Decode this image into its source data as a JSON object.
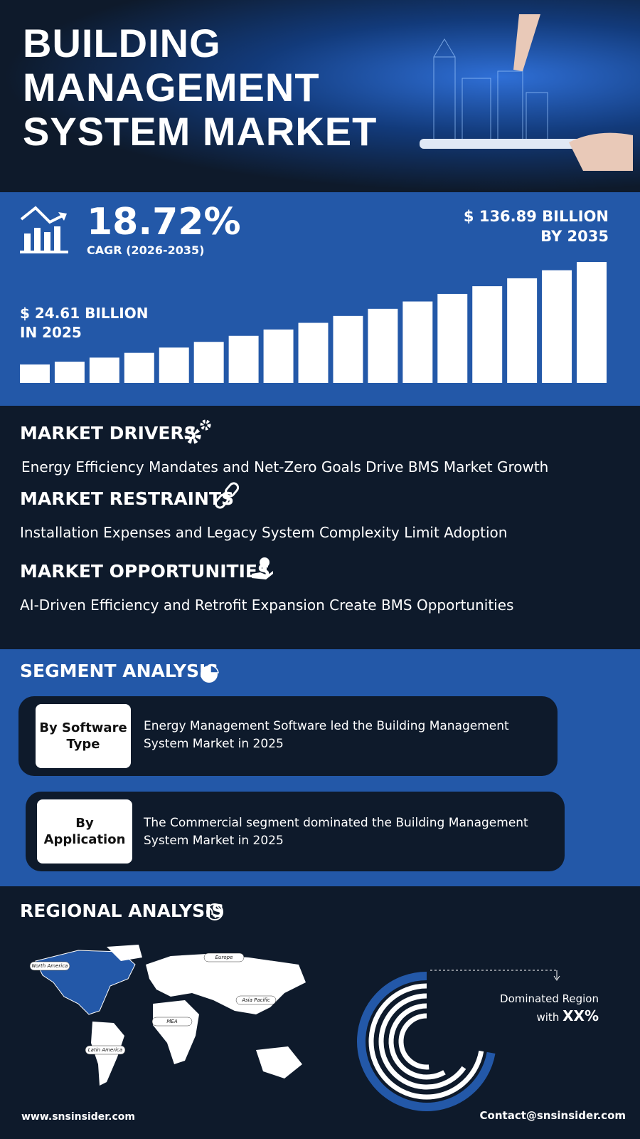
{
  "header": {
    "title": [
      "BUILDING",
      "MANAGEMENT",
      "SYSTEM MARKET"
    ]
  },
  "growth": {
    "cagr": "18.72%",
    "cagr_label": "CAGR (2026-2035)",
    "end_value": [
      "$ 136.89 BILLION",
      "BY 2035"
    ],
    "start_value": [
      "$ 24.61 BILLION",
      "IN 2025"
    ]
  },
  "dynamics": [
    {
      "heading": "MARKET DRIVERS",
      "text": "Energy Efficiency Mandates and Net-Zero Goals Drive BMS Market Growth"
    },
    {
      "heading": "MARKET RESTRAINTS",
      "text": "Installation Expenses and Legacy System Complexity Limit Adoption"
    },
    {
      "heading": "MARKET OPPORTUNITIES",
      "text": "AI-Driven Efficiency and Retrofit Expansion Create BMS Opportunities"
    }
  ],
  "segment": {
    "heading": "SEGMENT ANALYSIS",
    "items": [
      {
        "label": "By Software Type",
        "text": "Energy Management Software led the Building Management System Market in 2025"
      },
      {
        "label": "By Application",
        "text": "The Commercial segment dominated the Building Management System Market in 2025"
      }
    ]
  },
  "regional": {
    "heading": "REGIONAL ANALYSIS",
    "map_labels": [
      "North America",
      "Europe",
      "Asia Pacific",
      "MEA",
      "Latin America"
    ],
    "dominated": [
      "Dominated Region",
      "with",
      "XX%"
    ]
  },
  "footer": {
    "website": "www.snsinsider.com",
    "contact": "Contact@snsinsider.com"
  }
}
